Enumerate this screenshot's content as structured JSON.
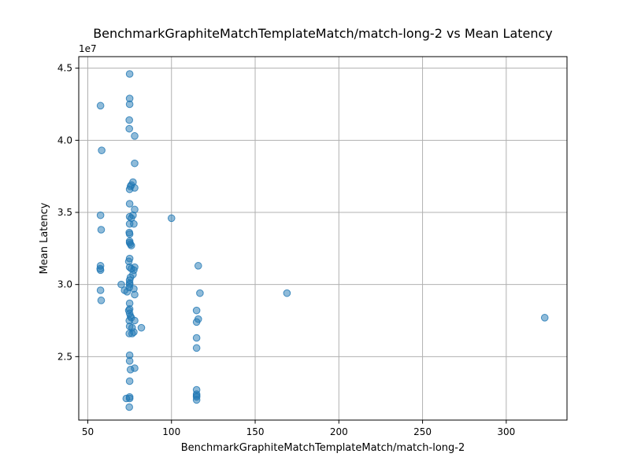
{
  "chart_data": {
    "type": "scatter",
    "title": "BenchmarkGraphiteMatchTemplateMatch/match-long-2 vs Mean Latency",
    "xlabel": "BenchmarkGraphiteMatchTemplateMatch/match-long-2",
    "ylabel": "Mean Latency",
    "y_scale_label": "1e7",
    "xlim": [
      44.6,
      336.3
    ],
    "ylim": [
      20.6,
      45.8
    ],
    "x_ticks": [
      50,
      100,
      150,
      200,
      250,
      300
    ],
    "x_tick_labels": [
      "50",
      "100",
      "150",
      "200",
      "250",
      "300"
    ],
    "y_ticks": [
      25,
      30,
      35,
      40,
      45
    ],
    "y_tick_labels": [
      "2.5",
      "3.0",
      "3.5",
      "4.0",
      "4.5"
    ],
    "grid": true,
    "marker_color": "#1f77b4",
    "marker_alpha": 0.5,
    "points": [
      [
        57.6,
        42.4
      ],
      [
        58.3,
        39.3
      ],
      [
        57.6,
        34.8
      ],
      [
        58.0,
        33.8
      ],
      [
        57.6,
        31.3
      ],
      [
        57.4,
        31.1
      ],
      [
        57.6,
        31.0
      ],
      [
        57.6,
        29.6
      ],
      [
        58.0,
        28.9
      ],
      [
        70.0,
        30.0
      ],
      [
        72.0,
        29.6
      ],
      [
        73.0,
        22.1
      ],
      [
        75.0,
        44.6
      ],
      [
        75.0,
        42.9
      ],
      [
        75.0,
        42.5
      ],
      [
        74.8,
        41.4
      ],
      [
        74.8,
        40.8
      ],
      [
        78.0,
        40.3
      ],
      [
        78.0,
        38.4
      ],
      [
        77.0,
        37.1
      ],
      [
        76.0,
        36.9
      ],
      [
        75.5,
        36.8
      ],
      [
        75.0,
        36.6
      ],
      [
        78.0,
        36.7
      ],
      [
        78.0,
        35.2
      ],
      [
        75.0,
        35.6
      ],
      [
        75.0,
        34.7
      ],
      [
        77.0,
        34.8
      ],
      [
        76.0,
        34.6
      ],
      [
        75.0,
        34.2
      ],
      [
        77.5,
        34.2
      ],
      [
        74.8,
        33.6
      ],
      [
        75.0,
        33.5
      ],
      [
        75.0,
        33.0
      ],
      [
        75.0,
        32.9
      ],
      [
        76.0,
        32.7
      ],
      [
        75.5,
        32.8
      ],
      [
        75.0,
        31.8
      ],
      [
        74.5,
        31.6
      ],
      [
        75.0,
        31.2
      ],
      [
        76.0,
        31.1
      ],
      [
        78.0,
        31.2
      ],
      [
        77.5,
        31.0
      ],
      [
        77.0,
        30.7
      ],
      [
        75.5,
        30.5
      ],
      [
        75.0,
        30.3
      ],
      [
        75.0,
        30.1
      ],
      [
        75.0,
        30.0
      ],
      [
        74.8,
        29.8
      ],
      [
        77.5,
        29.7
      ],
      [
        73.5,
        29.5
      ],
      [
        78.0,
        29.3
      ],
      [
        75.0,
        28.7
      ],
      [
        75.0,
        28.3
      ],
      [
        74.5,
        28.2
      ],
      [
        75.0,
        28.0
      ],
      [
        75.5,
        27.8
      ],
      [
        76.0,
        27.7
      ],
      [
        74.8,
        27.5
      ],
      [
        78.0,
        27.5
      ],
      [
        75.0,
        27.1
      ],
      [
        76.5,
        27.0
      ],
      [
        82.0,
        27.0
      ],
      [
        77.5,
        26.7
      ],
      [
        74.8,
        26.6
      ],
      [
        76.5,
        26.6
      ],
      [
        75.0,
        25.1
      ],
      [
        75.0,
        24.7
      ],
      [
        75.5,
        24.1
      ],
      [
        78.0,
        24.2
      ],
      [
        75.0,
        23.3
      ],
      [
        75.0,
        22.2
      ],
      [
        75.0,
        22.1
      ],
      [
        74.8,
        21.5
      ],
      [
        100.0,
        34.6
      ],
      [
        116.0,
        31.3
      ],
      [
        117.0,
        29.4
      ],
      [
        115.0,
        28.2
      ],
      [
        116.0,
        27.6
      ],
      [
        115.0,
        27.4
      ],
      [
        115.0,
        26.3
      ],
      [
        115.0,
        25.6
      ],
      [
        115.0,
        22.7
      ],
      [
        115.0,
        22.4
      ],
      [
        115.0,
        22.3
      ],
      [
        115.0,
        22.2
      ],
      [
        115.0,
        22.0
      ],
      [
        169.0,
        29.4
      ],
      [
        323.0,
        27.7
      ]
    ]
  }
}
